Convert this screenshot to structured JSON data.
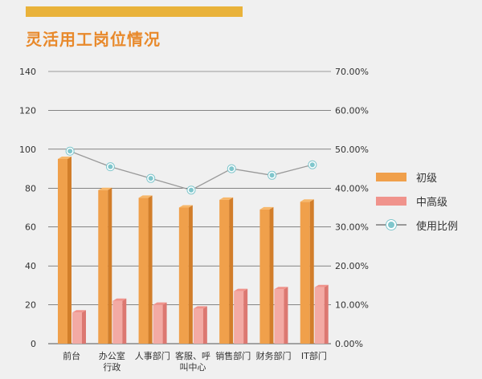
{
  "title": "灵活用工岗位情况",
  "colors": {
    "accent_bar": "#e9b23a",
    "title": "#e8892b",
    "junior_front": "#f0a04b",
    "junior_side": "#d27e2a",
    "junior_top": "#f7b76a",
    "senior_front": "#f3aaa4",
    "senior_side": "#dc7871",
    "senior_top": "#f0938c",
    "ratio_line": "#999999",
    "ratio_dot": "#7fc6cc"
  },
  "legend": {
    "junior": "初级",
    "senior": "中高级",
    "ratio": "使用比例"
  },
  "chart_data": {
    "type": "bar",
    "title": "灵活用工岗位情况",
    "categories": [
      [
        "前台"
      ],
      [
        "办公室",
        "行政"
      ],
      [
        "人事部门"
      ],
      [
        "客服、呼",
        "叫中心"
      ],
      [
        "销售部门"
      ],
      [
        "财务部门"
      ],
      [
        "IT部门"
      ]
    ],
    "series": [
      {
        "name": "初级",
        "type": "bar",
        "axis": "left",
        "values": [
          95,
          79,
          75,
          70,
          74,
          69,
          73
        ]
      },
      {
        "name": "中高级",
        "type": "bar",
        "axis": "left",
        "values": [
          16,
          22,
          20,
          18,
          27,
          28,
          29
        ]
      },
      {
        "name": "使用比例",
        "type": "line",
        "axis": "right",
        "values": [
          49.5,
          45.5,
          42.5,
          39.5,
          45,
          43.3,
          46
        ]
      }
    ],
    "ylim_left": [
      0,
      140
    ],
    "yticks_left": [
      "0",
      "20",
      "40",
      "60",
      "80",
      "100",
      "120",
      "140"
    ],
    "ylim_right": [
      0,
      70
    ],
    "yticks_right": [
      "0.00%",
      "10.00%",
      "20.00%",
      "30.00%",
      "40.00%",
      "50.00%",
      "60.00%",
      "70.00%"
    ],
    "grid": true,
    "legend_position": "right"
  }
}
